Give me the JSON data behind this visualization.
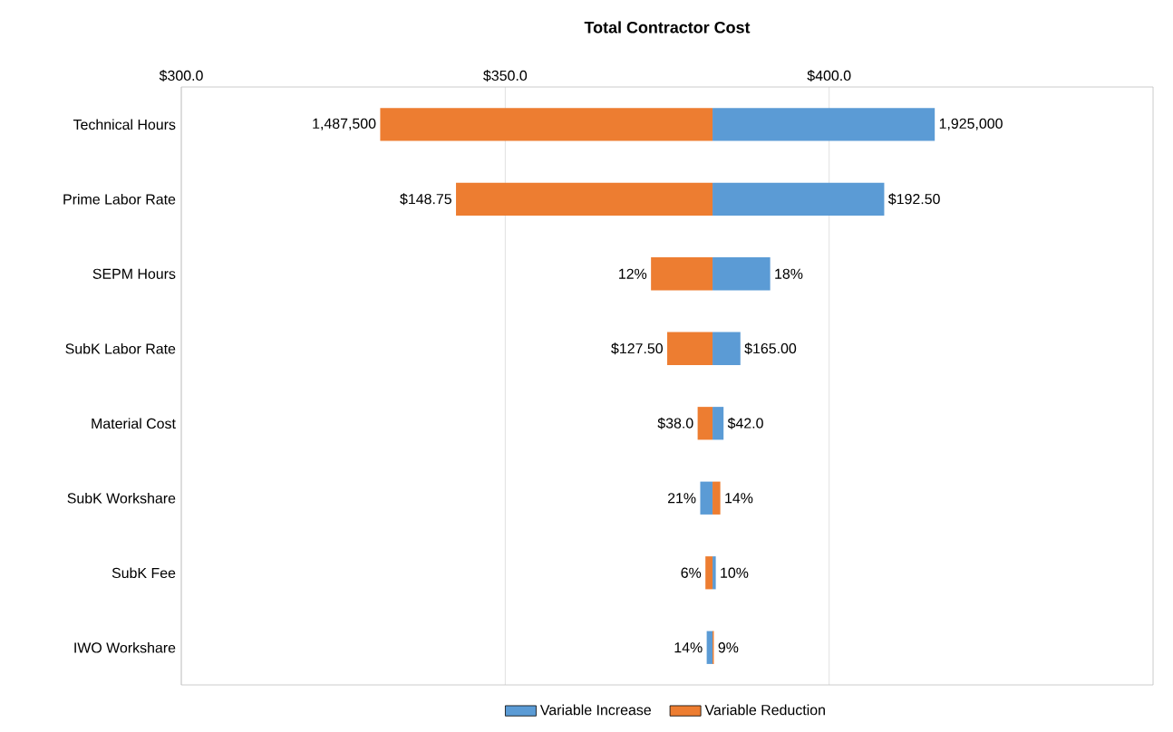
{
  "chart_data": {
    "type": "bar",
    "orientation": "horizontal",
    "title": "Total Contractor Cost",
    "categories": [
      "Technical Hours",
      "Prime Labor Rate",
      "SEPM Hours",
      "SubK Labor Rate",
      "Material Cost",
      "SubK Workshare",
      "SubK Fee",
      "IWO Workshare"
    ],
    "series": [
      {
        "name": "Variable Increase",
        "color": "#5b9bd5",
        "base": [
          382.0,
          382.0,
          382.0,
          382.0,
          382.0,
          380.1,
          382.0,
          381.1
        ],
        "values": [
          34.3,
          26.5,
          8.9,
          4.3,
          1.7,
          1.9,
          0.5,
          0.9
        ]
      },
      {
        "name": "Variable Reduction",
        "color": "#ed7d31",
        "base": [
          330.7,
          342.4,
          372.5,
          375.0,
          379.7,
          382.0,
          380.9,
          382.0
        ],
        "values": [
          51.3,
          39.6,
          9.5,
          7.0,
          2.3,
          1.2,
          1.1,
          0.2
        ]
      }
    ],
    "annotations": [
      {
        "text": "1,487,500",
        "x": 330.7,
        "y": "Technical Hours"
      },
      {
        "text": "1,925,000",
        "x": 416.3,
        "y": "Technical Hours"
      },
      {
        "text": "$148.75",
        "x": 342.4,
        "y": "Prime Labor Rate"
      },
      {
        "text": "$192.50",
        "x": 408.5,
        "y": "Prime Labor Rate"
      },
      {
        "text": "12%",
        "x": 372.5,
        "y": "SEPM Hours"
      },
      {
        "text": "18%",
        "x": 390.9,
        "y": "SEPM Hours"
      },
      {
        "text": "$127.50",
        "x": 375.0,
        "y": "SubK Labor Rate"
      },
      {
        "text": "$165.00",
        "x": 386.3,
        "y": "SubK Labor Rate"
      },
      {
        "text": "$38.0",
        "x": 379.7,
        "y": "Material Cost"
      },
      {
        "text": "$42.0",
        "x": 383.7,
        "y": "Material Cost"
      },
      {
        "text": "21%",
        "x": 380.1,
        "y": "SubK Workshare"
      },
      {
        "text": "14%",
        "x": 383.2,
        "y": "SubK Workshare"
      },
      {
        "text": "6%",
        "x": 380.9,
        "y": "SubK Fee"
      },
      {
        "text": "10%",
        "x": 382.5,
        "y": "SubK Fee"
      },
      {
        "text": "14%",
        "x": 381.1,
        "y": "IWO Workshare"
      },
      {
        "text": "9%",
        "x": 382.2,
        "y": "IWO Workshare"
      }
    ],
    "xlim": [
      300,
      450
    ],
    "xticks": [
      {
        "value": 300,
        "label": "$300.0"
      },
      {
        "value": 350,
        "label": "$350.0"
      },
      {
        "value": 400,
        "label": "$400.0"
      }
    ],
    "grid": "x",
    "legend": "bottom"
  }
}
